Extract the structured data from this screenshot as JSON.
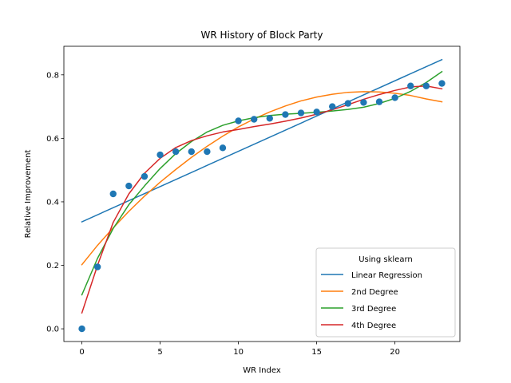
{
  "chart_data": {
    "type": "scatter",
    "title": "WR History of Block Party",
    "xlabel": "WR Index",
    "ylabel": "Relative Improvement",
    "xlim": [
      -1.15,
      24.15
    ],
    "ylim": [
      -0.04,
      0.89
    ],
    "xticks": [
      0,
      5,
      10,
      15,
      20
    ],
    "yticks": [
      0.0,
      0.2,
      0.4,
      0.6,
      0.8
    ],
    "xtick_labels": [
      "0",
      "5",
      "10",
      "15",
      "20"
    ],
    "ytick_labels": [
      "0.0",
      "0.2",
      "0.4",
      "0.6",
      "0.8"
    ],
    "grid": false,
    "points": {
      "color": "#1f77b4",
      "x": [
        0,
        1,
        2,
        3,
        4,
        5,
        6,
        7,
        8,
        9,
        10,
        11,
        12,
        13,
        14,
        15,
        16,
        17,
        18,
        19,
        20,
        21,
        22,
        23
      ],
      "y": [
        0.0,
        0.195,
        0.425,
        0.45,
        0.48,
        0.548,
        0.558,
        0.558,
        0.558,
        0.57,
        0.655,
        0.66,
        0.663,
        0.675,
        0.68,
        0.683,
        0.7,
        0.71,
        0.713,
        0.715,
        0.728,
        0.765,
        0.765,
        0.773
      ]
    },
    "legend": {
      "title": "Using sklearn",
      "placement": "lower right"
    },
    "series": [
      {
        "name": "Linear Regression",
        "color": "#1f77b4",
        "x": [
          0,
          23
        ],
        "y": [
          0.337,
          0.848
        ]
      },
      {
        "name": "2nd Degree",
        "color": "#ff7f0e",
        "x": [
          0,
          1,
          2,
          3,
          4,
          5,
          6,
          7,
          8,
          9,
          10,
          11,
          12,
          13,
          14,
          15,
          16,
          17,
          18,
          19,
          20,
          21,
          22,
          23
        ],
        "y": [
          0.202,
          0.263,
          0.318,
          0.37,
          0.418,
          0.462,
          0.502,
          0.54,
          0.575,
          0.607,
          0.636,
          0.661,
          0.683,
          0.702,
          0.718,
          0.73,
          0.739,
          0.745,
          0.747,
          0.746,
          0.742,
          0.735,
          0.724,
          0.715
        ]
      },
      {
        "name": "3rd Degree",
        "color": "#2ca02c",
        "x": [
          0,
          1,
          2,
          3,
          4,
          5,
          6,
          7,
          8,
          9,
          10,
          11,
          12,
          13,
          14,
          15,
          16,
          17,
          18,
          19,
          20,
          21,
          22,
          23
        ],
        "y": [
          0.107,
          0.222,
          0.316,
          0.391,
          0.45,
          0.505,
          0.552,
          0.59,
          0.62,
          0.641,
          0.655,
          0.665,
          0.672,
          0.676,
          0.679,
          0.682,
          0.686,
          0.691,
          0.698,
          0.71,
          0.726,
          0.748,
          0.776,
          0.81
        ]
      },
      {
        "name": "4th Degree",
        "color": "#d62728",
        "x": [
          0,
          1,
          2,
          3,
          4,
          5,
          6,
          7,
          8,
          9,
          10,
          11,
          12,
          13,
          14,
          15,
          16,
          17,
          18,
          19,
          20,
          21,
          22,
          23
        ],
        "y": [
          0.05,
          0.2,
          0.335,
          0.425,
          0.49,
          0.537,
          0.571,
          0.593,
          0.608,
          0.62,
          0.628,
          0.637,
          0.645,
          0.654,
          0.664,
          0.676,
          0.69,
          0.706,
          0.723,
          0.738,
          0.751,
          0.762,
          0.765,
          0.756
        ]
      }
    ]
  }
}
